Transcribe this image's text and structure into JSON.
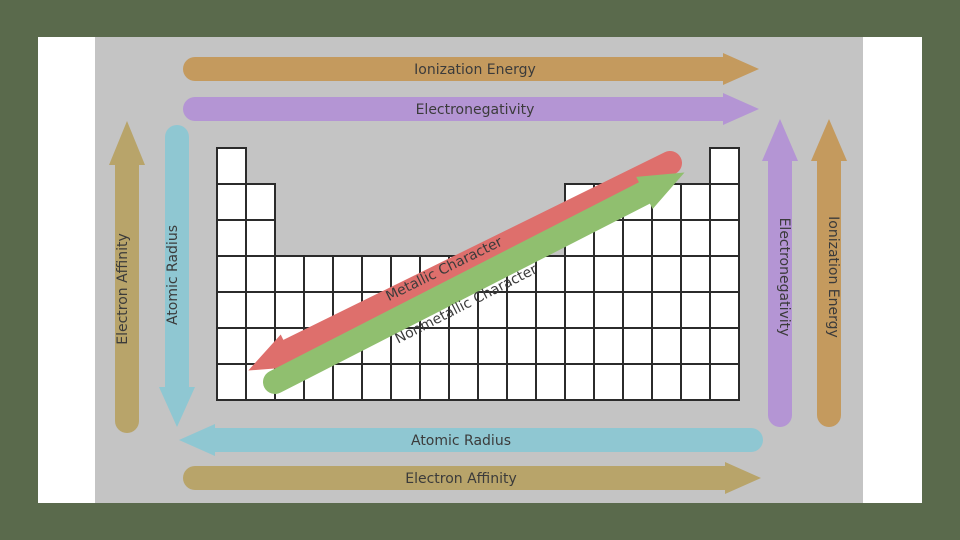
{
  "trends": {
    "ionization_energy_top": "Ionization Energy",
    "electronegativity_top": "Electronegativity",
    "electron_affinity_left": "Electron Affinity",
    "atomic_radius_left": "Atomic Radius",
    "electronegativity_right": "Electronegativity",
    "ionization_energy_right": "Ionization Energy",
    "atomic_radius_bottom": "Atomic Radius",
    "electron_affinity_bottom": "Electron Affinity",
    "metallic_character": "Metallic Character",
    "nonmetallic_character": "Nonmetallic Character"
  },
  "periodic_table": {
    "columns": 18,
    "rows": 7,
    "period_lengths": [
      2,
      8,
      8,
      18,
      18,
      18,
      18
    ]
  },
  "colors": {
    "page_background": "#5a6a4c",
    "diagram_background": "#c4c4c4",
    "ionization_energy": "#c49a5e",
    "electronegativity": "#b495d4",
    "electron_affinity": "#b8a46a",
    "atomic_radius": "#8fc7d2",
    "metallic_character": "#de6f6c",
    "nonmetallic_character": "#90bf6f",
    "cell_fill": "#ffffff",
    "cell_stroke": "#2b2b2b"
  }
}
